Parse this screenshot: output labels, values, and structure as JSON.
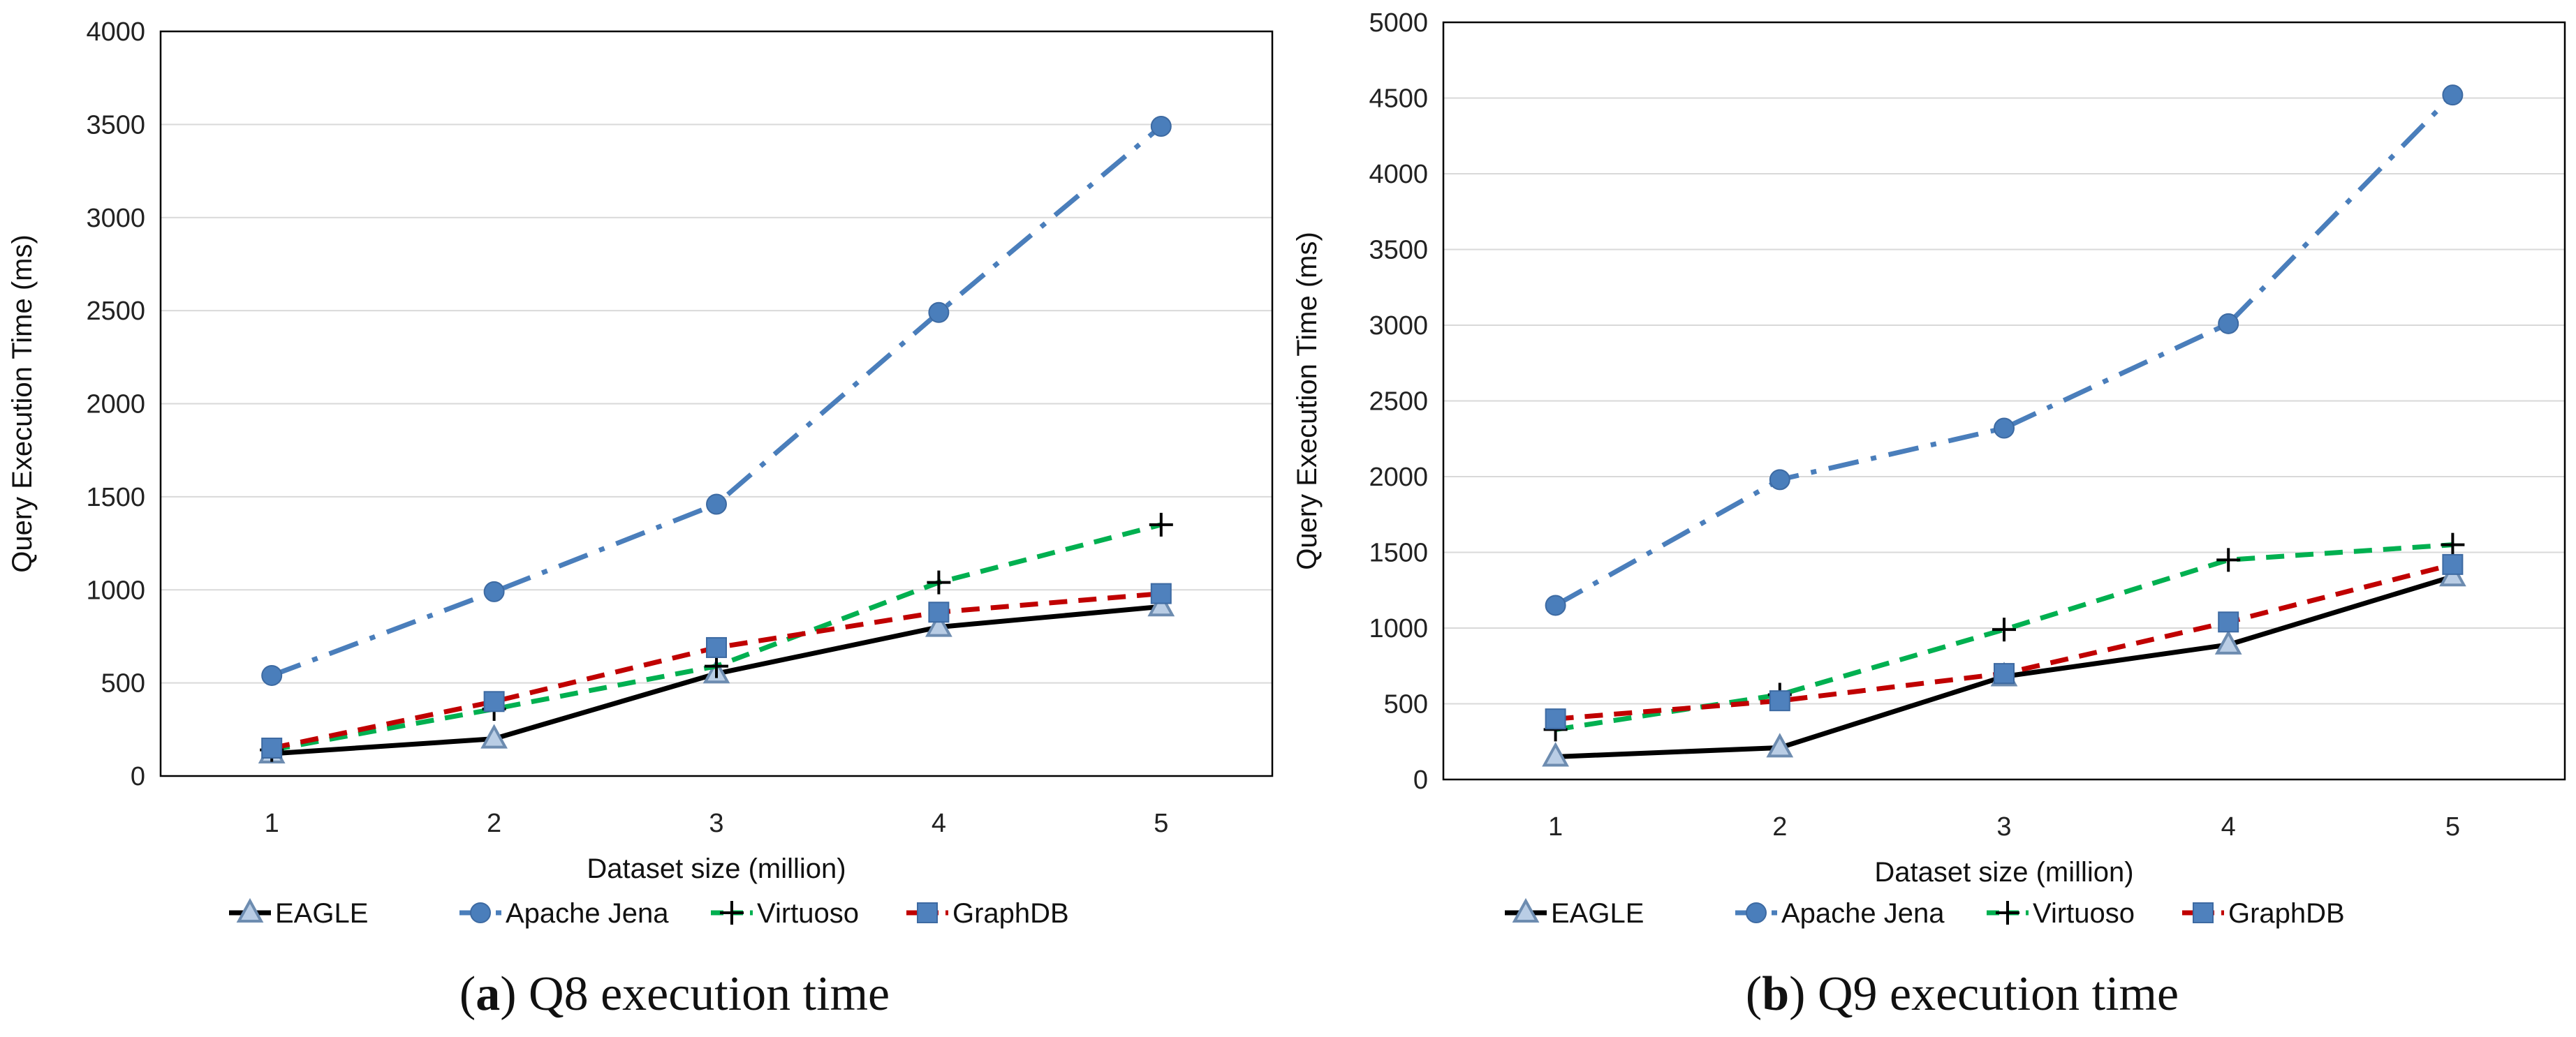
{
  "chart_data": [
    {
      "type": "line",
      "caption_letter": "a",
      "caption_text": "Q8 execution time",
      "categories": [
        "1",
        "2",
        "3",
        "4",
        "5"
      ],
      "xlabel": "Dataset size (million)",
      "ylabel": "Query Execution Time (ms)",
      "ylim": [
        0,
        4000
      ],
      "yticks": [
        0,
        500,
        1000,
        1500,
        2000,
        2500,
        3000,
        3500,
        4000
      ],
      "grid": true,
      "legend_position": "bottom",
      "series": [
        {
          "name": "EAGLE",
          "values": [
            120,
            200,
            550,
            800,
            910
          ],
          "color": "#000000",
          "marker": "triangle",
          "dash": "solid"
        },
        {
          "name": "Apache Jena",
          "values": [
            540,
            990,
            1460,
            2490,
            3490
          ],
          "color": "#4a7ebb",
          "marker": "circle",
          "dash": "dashdot"
        },
        {
          "name": "Virtuoso",
          "values": [
            140,
            360,
            590,
            1040,
            1350
          ],
          "color": "#00b050",
          "marker": "plus",
          "dash": "dashed"
        },
        {
          "name": "GraphDB",
          "values": [
            150,
            400,
            690,
            880,
            980
          ],
          "color": "#c00000",
          "marker": "square",
          "dash": "dashed"
        }
      ]
    },
    {
      "type": "line",
      "caption_letter": "b",
      "caption_text": "Q9 execution time",
      "categories": [
        "1",
        "2",
        "3",
        "4",
        "5"
      ],
      "xlabel": "Dataset size (million)",
      "ylabel": "Query Execution Time (ms)",
      "ylim": [
        0,
        5000
      ],
      "yticks": [
        0,
        500,
        1000,
        1500,
        2000,
        2500,
        3000,
        3500,
        4000,
        4500,
        5000
      ],
      "grid": true,
      "legend_position": "bottom",
      "series": [
        {
          "name": "EAGLE",
          "values": [
            150,
            210,
            680,
            890,
            1340
          ],
          "color": "#000000",
          "marker": "triangle",
          "dash": "solid"
        },
        {
          "name": "Apache Jena",
          "values": [
            1150,
            1980,
            2320,
            3010,
            4520
          ],
          "color": "#4a7ebb",
          "marker": "circle",
          "dash": "dashdot"
        },
        {
          "name": "Virtuoso",
          "values": [
            330,
            560,
            990,
            1450,
            1550
          ],
          "color": "#00b050",
          "marker": "plus",
          "dash": "dashed"
        },
        {
          "name": "GraphDB",
          "values": [
            400,
            520,
            700,
            1040,
            1420
          ],
          "color": "#c00000",
          "marker": "square",
          "dash": "dashed"
        }
      ]
    }
  ]
}
